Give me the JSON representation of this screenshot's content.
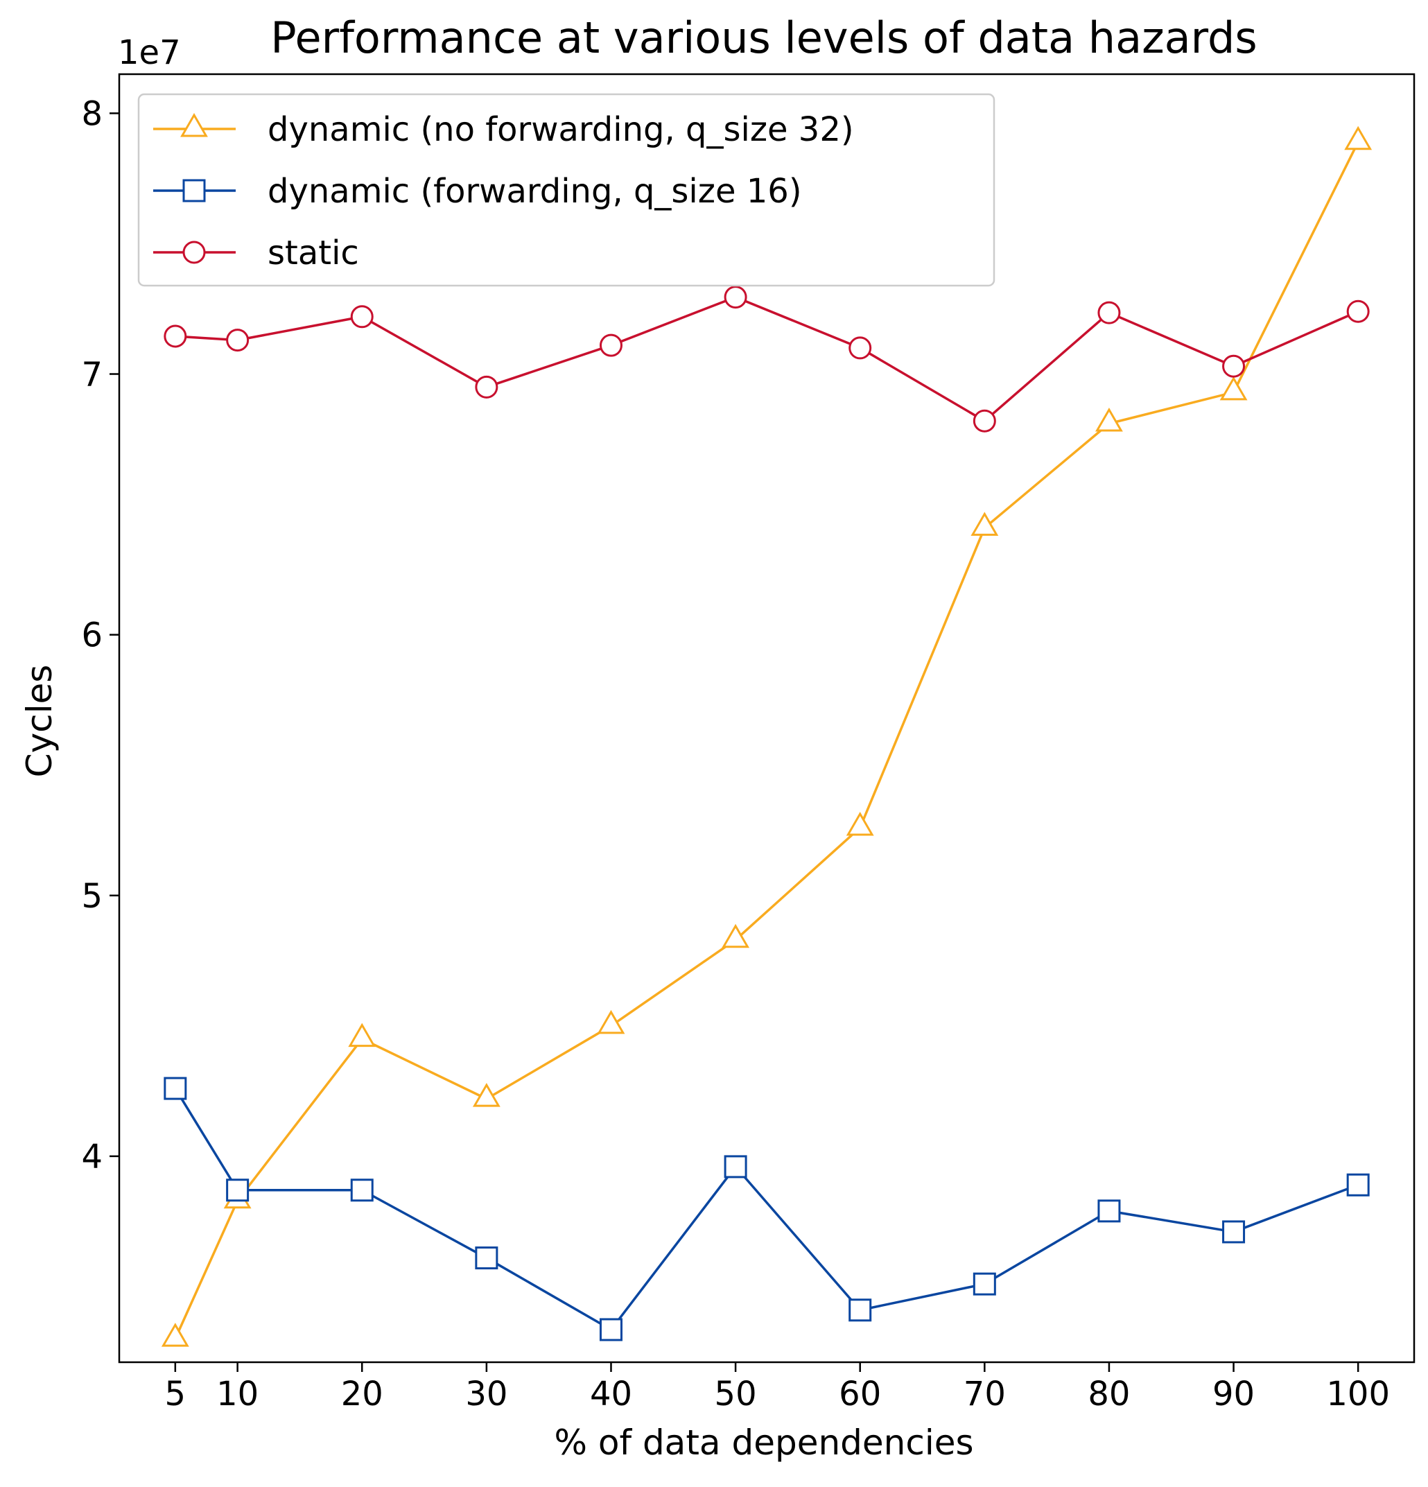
{
  "chart_data": {
    "type": "line",
    "title": "Performance at various levels of data hazards",
    "xlabel": "% of data dependencies",
    "ylabel": "Cycles",
    "y_offset_label": "1e7",
    "y_scale": 10000000,
    "x_ticks": [
      5,
      10,
      20,
      30,
      40,
      50,
      60,
      70,
      80,
      90,
      100
    ],
    "y_ticks": [
      4,
      5,
      6,
      7,
      8
    ],
    "xlim": [
      0.5,
      104.5
    ],
    "ylim": [
      32100000,
      81500000
    ],
    "grid": false,
    "legend_position": "top-left",
    "x": [
      5,
      10,
      20,
      30,
      40,
      50,
      60,
      70,
      80,
      90,
      100
    ],
    "series": [
      {
        "name": "dynamic (no forwarding, q_size 32)",
        "color": "#f9ab1f",
        "marker": "triangle",
        "values": [
          33000000,
          38300000,
          44500000,
          42200000,
          45000000,
          48300000,
          52600000,
          64100000,
          68100000,
          69300000,
          78900000
        ]
      },
      {
        "name": "dynamic (forwarding, q_size 16)",
        "color": "#0a46a0",
        "marker": "square",
        "values": [
          42600000,
          38700000,
          38700000,
          36100000,
          33350000,
          39600000,
          34100000,
          35100000,
          37900000,
          37100000,
          38900000
        ]
      },
      {
        "name": "static",
        "color": "#c8102e",
        "marker": "circle",
        "values": [
          71450000,
          71300000,
          72200000,
          69500000,
          71100000,
          72950000,
          71000000,
          68200000,
          72350000,
          70300000,
          72400000
        ]
      }
    ]
  }
}
